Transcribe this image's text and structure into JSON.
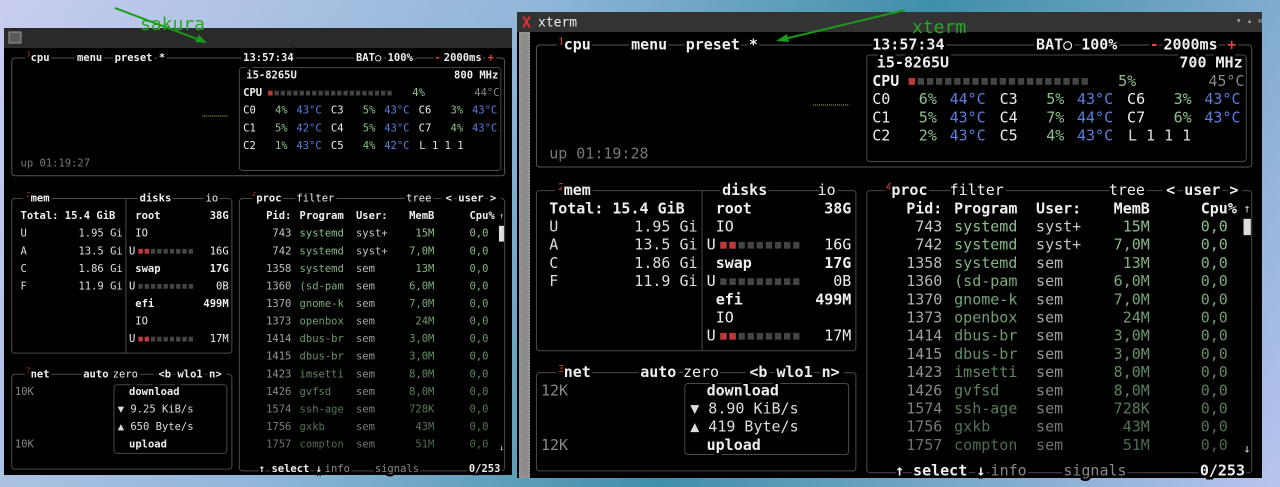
{
  "annotations": [
    "sakura",
    "xterm"
  ],
  "windows": [
    {
      "btop": {
        "cpu": {
          "num": "1",
          "label": "cpu",
          "menu": "menu",
          "preset": "preset *",
          "clock": "13:57:34",
          "battery": "BAT○ 100%",
          "minus": "-",
          "interval": "2000ms",
          "plus": "+",
          "model": "i5-8265U",
          "freq": "800 MHz",
          "total": {
            "name": "CPU",
            "pct": "4%",
            "temp": "44°C"
          },
          "cores": [
            [
              "C0",
              "4%",
              "43°C"
            ],
            [
              "C1",
              "5%",
              "42°C"
            ],
            [
              "C2",
              "1%",
              "43°C"
            ],
            [
              "C3",
              "5%",
              "43°C"
            ],
            [
              "C4",
              "5%",
              "43°C"
            ],
            [
              "C5",
              "4%",
              "42°C"
            ],
            [
              "C6",
              "3%",
              "43°C"
            ],
            [
              "C7",
              "4%",
              "43°C"
            ]
          ],
          "load": "L 1 1 1",
          "uptime": "up 01:19:27"
        },
        "mem": {
          "num": "2",
          "label": "mem",
          "total": "Total: 15.4 GiB",
          "rows": [
            [
              "U",
              "1.95 Gi"
            ],
            [
              "A",
              "13.5 Gi"
            ],
            [
              "C",
              "1.86 Gi"
            ],
            [
              "F",
              "11.9 Gi"
            ]
          ]
        },
        "disks": {
          "label": "disks",
          "io": "io",
          "rows": [
            {
              "name": "root",
              "value": "38G"
            },
            {
              "name": "IO"
            },
            {
              "name": "U",
              "value": "16G"
            },
            {
              "name": "swap",
              "value": "17G"
            },
            {
              "name": "U",
              "value": "0B"
            },
            {
              "name": "efi",
              "value": "499M"
            },
            {
              "name": "IO"
            },
            {
              "name": "U",
              "value": "17M"
            }
          ]
        },
        "net": {
          "num": "3",
          "label": "net",
          "auto": "auto",
          "zero": "zero",
          "iface": "<b wlo1 n>",
          "scale_top": "10K",
          "scale_bottom": "10K",
          "download": "download",
          "down_rate": "▼ 9.25 KiB/s",
          "up_rate": "▲ 650 Byte/s",
          "upload": "upload"
        },
        "proc": {
          "num": "4",
          "label": "proc",
          "filter": "filter",
          "tree": "tree",
          "user": "< user >",
          "columns": [
            "Pid:",
            "Program",
            "User:",
            "MemB",
            "Cpu%"
          ],
          "up_arrow": "↑",
          "down_arrow": "↓",
          "rows": [
            [
              "743",
              "systemd",
              "syst+",
              "15M",
              "0,0"
            ],
            [
              "742",
              "systemd",
              "syst+",
              "7,0M",
              "0,0"
            ],
            [
              "1358",
              "systemd",
              "sem",
              "13M",
              "0,0"
            ],
            [
              "1360",
              "(sd-pam",
              "sem",
              "6,0M",
              "0,0"
            ],
            [
              "1370",
              "gnome-k",
              "sem",
              "7,0M",
              "0,0"
            ],
            [
              "1373",
              "openbox",
              "sem",
              "24M",
              "0,0"
            ],
            [
              "1414",
              "dbus-br",
              "sem",
              "3,0M",
              "0,0"
            ],
            [
              "1415",
              "dbus-br",
              "sem",
              "3,0M",
              "0,0"
            ],
            [
              "1423",
              "imsetti",
              "sem",
              "8,0M",
              "0,0"
            ],
            [
              "1426",
              "gvfsd",
              "sem",
              "8,0M",
              "0,0"
            ],
            [
              "1574",
              "ssh-age",
              "sem",
              "728K",
              "0,0"
            ],
            [
              "1756",
              "gxkb",
              "sem",
              "43M",
              "0,0"
            ],
            [
              "1757",
              "compton",
              "sem",
              "51M",
              "0,0"
            ]
          ],
          "footer": {
            "select": "↑ select ↓",
            "info": "info",
            "signals": "signals",
            "count": "0/253"
          }
        }
      }
    },
    {
      "title": "xterm",
      "btop": {
        "cpu": {
          "num": "1",
          "label": "cpu",
          "menu": "menu",
          "preset": "preset *",
          "clock": "13:57:34",
          "battery": "BAT○ 100%",
          "minus": "-",
          "interval": "2000ms",
          "plus": "+",
          "model": "i5-8265U",
          "freq": "700 MHz",
          "total": {
            "name": "CPU",
            "pct": "5%",
            "temp": "45°C"
          },
          "cores": [
            [
              "C0",
              "6%",
              "44°C"
            ],
            [
              "C1",
              "5%",
              "43°C"
            ],
            [
              "C2",
              "2%",
              "43°C"
            ],
            [
              "C3",
              "5%",
              "43°C"
            ],
            [
              "C4",
              "7%",
              "44°C"
            ],
            [
              "C5",
              "4%",
              "43°C"
            ],
            [
              "C6",
              "3%",
              "43°C"
            ],
            [
              "C7",
              "6%",
              "43°C"
            ]
          ],
          "load": "L 1 1 1",
          "uptime": "up 01:19:28"
        },
        "mem": {
          "num": "2",
          "label": "mem",
          "total": "Total: 15.4 GiB",
          "rows": [
            [
              "U",
              "1.95 Gi"
            ],
            [
              "A",
              "13.5 Gi"
            ],
            [
              "C",
              "1.86 Gi"
            ],
            [
              "F",
              "11.9 Gi"
            ]
          ]
        },
        "disks": {
          "label": "disks",
          "io": "io",
          "rows": [
            {
              "name": "root",
              "value": "38G"
            },
            {
              "name": "IO"
            },
            {
              "name": "U",
              "value": "16G"
            },
            {
              "name": "swap",
              "value": "17G"
            },
            {
              "name": "U",
              "value": "0B"
            },
            {
              "name": "efi",
              "value": "499M"
            },
            {
              "name": "IO"
            },
            {
              "name": "U",
              "value": "17M"
            }
          ]
        },
        "net": {
          "num": "3",
          "label": "net",
          "auto": "auto",
          "zero": "zero",
          "iface": "<b wlo1 n>",
          "scale_top": "12K",
          "scale_bottom": "12K",
          "download": "download",
          "down_rate": "▼ 8.90 KiB/s",
          "up_rate": "▲ 419 Byte/s",
          "upload": "upload"
        },
        "proc": {
          "num": "4",
          "label": "proc",
          "filter": "filter",
          "tree": "tree",
          "user": "< user >",
          "columns": [
            "Pid:",
            "Program",
            "User:",
            "MemB",
            "Cpu%"
          ],
          "up_arrow": "↑",
          "down_arrow": "↓",
          "rows": [
            [
              "743",
              "systemd",
              "syst+",
              "15M",
              "0,0"
            ],
            [
              "742",
              "systemd",
              "syst+",
              "7,0M",
              "0,0"
            ],
            [
              "1358",
              "systemd",
              "sem",
              "13M",
              "0,0"
            ],
            [
              "1360",
              "(sd-pam",
              "sem",
              "6,0M",
              "0,0"
            ],
            [
              "1370",
              "gnome-k",
              "sem",
              "7,0M",
              "0,0"
            ],
            [
              "1373",
              "openbox",
              "sem",
              "24M",
              "0,0"
            ],
            [
              "1414",
              "dbus-br",
              "sem",
              "3,0M",
              "0,0"
            ],
            [
              "1415",
              "dbus-br",
              "sem",
              "3,0M",
              "0,0"
            ],
            [
              "1423",
              "imsetti",
              "sem",
              "8,0M",
              "0,0"
            ],
            [
              "1426",
              "gvfsd",
              "sem",
              "8,0M",
              "0,0"
            ],
            [
              "1574",
              "ssh-age",
              "sem",
              "728K",
              "0,0"
            ],
            [
              "1756",
              "gxkb",
              "sem",
              "43M",
              "0,0"
            ],
            [
              "1757",
              "compton",
              "sem",
              "51M",
              "0,0"
            ]
          ],
          "footer": {
            "select": "↑ select ↓",
            "info": "info",
            "signals": "signals",
            "count": "0/253"
          }
        }
      }
    }
  ]
}
